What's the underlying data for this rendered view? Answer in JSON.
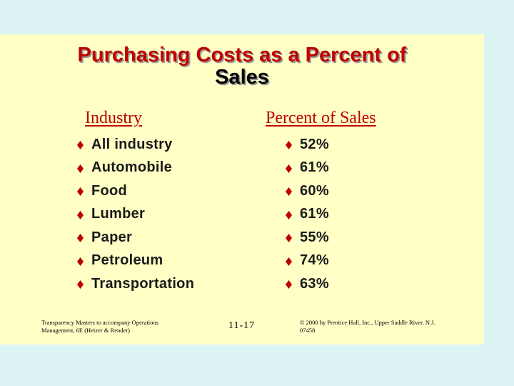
{
  "title": {
    "line1": "Purchasing Costs as a Percent of",
    "line2": "Sales"
  },
  "columns": {
    "industry_header": "Industry",
    "percent_header": "Percent of Sales"
  },
  "rows": [
    {
      "industry": "All industry",
      "percent": "52%"
    },
    {
      "industry": "Automobile",
      "percent": "61%"
    },
    {
      "industry": "Food",
      "percent": "60%"
    },
    {
      "industry": "Lumber",
      "percent": "61%"
    },
    {
      "industry": "Paper",
      "percent": "55%"
    },
    {
      "industry": "Petroleum",
      "percent": "74%"
    },
    {
      "industry": "Transportation",
      "percent": "63%"
    }
  ],
  "footer": {
    "left_line1": "Transparency Masters to accompany Operations",
    "left_line2": "Management, 6E (Heizer & Render)",
    "page_number": "11-17",
    "right_line1": "© 2000 by Prentice Hall, Inc., Upper Saddle River, N.J.",
    "right_line2": "07458"
  },
  "colors": {
    "background": "#dcf4f4",
    "slide": "#ffffc6",
    "title_red": "#c00000",
    "bullet_red": "#c00000"
  },
  "icons": {
    "bullet": "diamond-bullet-icon"
  }
}
